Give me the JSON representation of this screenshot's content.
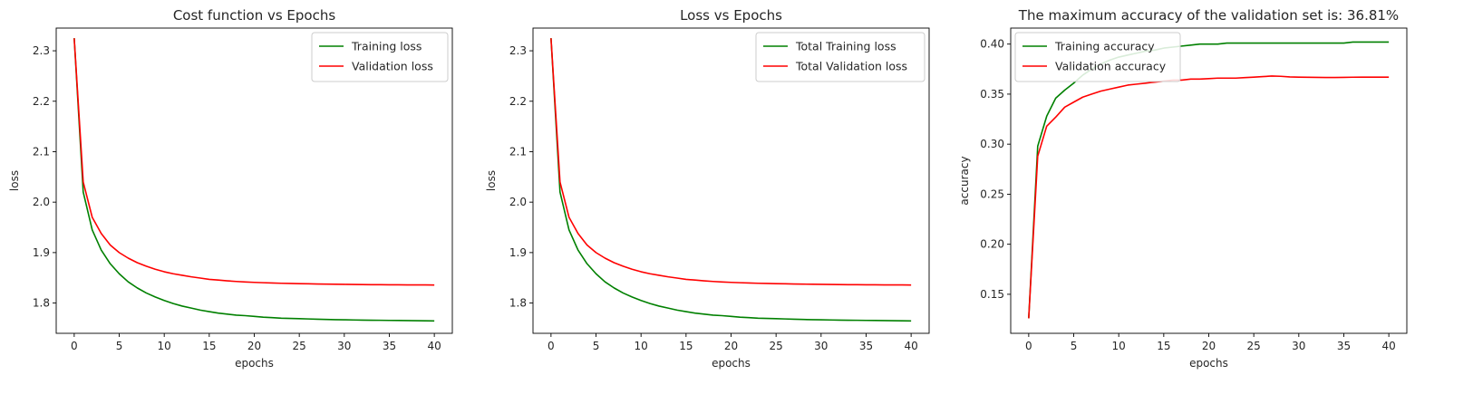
{
  "chart_data": [
    {
      "type": "line",
      "title": "Cost function vs Epochs",
      "xlabel": "epochs",
      "ylabel": "loss",
      "xlim": [
        -2,
        42
      ],
      "ylim": [
        1.74,
        2.345
      ],
      "xticks": [
        0,
        5,
        10,
        15,
        20,
        25,
        30,
        35,
        40
      ],
      "yticks": [
        1.8,
        1.9,
        2.0,
        2.1,
        2.2,
        2.3
      ],
      "ytick_labels": [
        "1.8",
        "1.9",
        "2.0",
        "2.1",
        "2.2",
        "2.3"
      ],
      "grid": false,
      "legend": "top-right",
      "x": [
        0,
        1,
        2,
        3,
        4,
        5,
        6,
        7,
        8,
        9,
        10,
        11,
        12,
        13,
        14,
        15,
        16,
        17,
        18,
        19,
        20,
        21,
        22,
        23,
        24,
        25,
        26,
        27,
        28,
        29,
        30,
        31,
        32,
        33,
        34,
        35,
        36,
        37,
        38,
        39,
        40
      ],
      "series": [
        {
          "name": "Training loss",
          "color": "#008000",
          "values": [
            2.325,
            2.02,
            1.945,
            1.905,
            1.878,
            1.858,
            1.842,
            1.83,
            1.82,
            1.812,
            1.805,
            1.799,
            1.794,
            1.79,
            1.786,
            1.783,
            1.78,
            1.778,
            1.776,
            1.775,
            1.7735,
            1.772,
            1.771,
            1.77,
            1.7695,
            1.769,
            1.7685,
            1.768,
            1.7675,
            1.767,
            1.7668,
            1.7665,
            1.7662,
            1.766,
            1.7658,
            1.7656,
            1.7654,
            1.7652,
            1.765,
            1.7648,
            1.7645
          ]
        },
        {
          "name": "Validation loss",
          "color": "#ff0000",
          "values": [
            2.325,
            2.04,
            1.97,
            1.938,
            1.915,
            1.9,
            1.889,
            1.88,
            1.873,
            1.867,
            1.862,
            1.858,
            1.855,
            1.852,
            1.8495,
            1.847,
            1.8455,
            1.844,
            1.8428,
            1.8418,
            1.841,
            1.8403,
            1.8397,
            1.8392,
            1.8388,
            1.8384,
            1.8381,
            1.8378,
            1.8375,
            1.8372,
            1.837,
            1.8368,
            1.8366,
            1.8364,
            1.8363,
            1.8362,
            1.8361,
            1.836,
            1.836,
            1.8359,
            1.8358
          ]
        }
      ]
    },
    {
      "type": "line",
      "title": "Loss vs Epochs",
      "xlabel": "epochs",
      "ylabel": "loss",
      "xlim": [
        -2,
        42
      ],
      "ylim": [
        1.74,
        2.345
      ],
      "xticks": [
        0,
        5,
        10,
        15,
        20,
        25,
        30,
        35,
        40
      ],
      "yticks": [
        1.8,
        1.9,
        2.0,
        2.1,
        2.2,
        2.3
      ],
      "ytick_labels": [
        "1.8",
        "1.9",
        "2.0",
        "2.1",
        "2.2",
        "2.3"
      ],
      "grid": false,
      "legend": "top-right",
      "x": [
        0,
        1,
        2,
        3,
        4,
        5,
        6,
        7,
        8,
        9,
        10,
        11,
        12,
        13,
        14,
        15,
        16,
        17,
        18,
        19,
        20,
        21,
        22,
        23,
        24,
        25,
        26,
        27,
        28,
        29,
        30,
        31,
        32,
        33,
        34,
        35,
        36,
        37,
        38,
        39,
        40
      ],
      "series": [
        {
          "name": "Total Training loss",
          "color": "#008000",
          "values": [
            2.325,
            2.02,
            1.945,
            1.905,
            1.878,
            1.858,
            1.842,
            1.83,
            1.82,
            1.812,
            1.805,
            1.799,
            1.794,
            1.79,
            1.786,
            1.783,
            1.78,
            1.778,
            1.776,
            1.775,
            1.7735,
            1.772,
            1.771,
            1.77,
            1.7695,
            1.769,
            1.7685,
            1.768,
            1.7675,
            1.767,
            1.7668,
            1.7665,
            1.7662,
            1.766,
            1.7658,
            1.7656,
            1.7654,
            1.7652,
            1.765,
            1.7648,
            1.7645
          ]
        },
        {
          "name": "Total Validation loss",
          "color": "#ff0000",
          "values": [
            2.325,
            2.04,
            1.97,
            1.938,
            1.915,
            1.9,
            1.889,
            1.88,
            1.873,
            1.867,
            1.862,
            1.858,
            1.855,
            1.852,
            1.8495,
            1.847,
            1.8455,
            1.844,
            1.8428,
            1.8418,
            1.841,
            1.8403,
            1.8397,
            1.8392,
            1.8388,
            1.8384,
            1.8381,
            1.8378,
            1.8375,
            1.8372,
            1.837,
            1.8368,
            1.8366,
            1.8364,
            1.8363,
            1.8362,
            1.8361,
            1.836,
            1.836,
            1.8359,
            1.8358
          ]
        }
      ]
    },
    {
      "type": "line",
      "title": "The maximum accuracy of the validation set is: 36.81%",
      "xlabel": "epochs",
      "ylabel": "accuracy",
      "xlim": [
        -2,
        42
      ],
      "ylim": [
        0.111,
        0.416
      ],
      "xticks": [
        0,
        5,
        10,
        15,
        20,
        25,
        30,
        35,
        40
      ],
      "yticks": [
        0.15,
        0.2,
        0.25,
        0.3,
        0.35,
        0.4
      ],
      "ytick_labels": [
        "0.15",
        "0.20",
        "0.25",
        "0.30",
        "0.35",
        "0.40"
      ],
      "grid": false,
      "legend": "top-left",
      "x": [
        0,
        1,
        2,
        3,
        4,
        5,
        6,
        7,
        8,
        9,
        10,
        11,
        12,
        13,
        14,
        15,
        16,
        17,
        18,
        19,
        20,
        21,
        22,
        23,
        24,
        25,
        26,
        27,
        28,
        29,
        30,
        31,
        32,
        33,
        34,
        35,
        36,
        37,
        38,
        39,
        40
      ],
      "series": [
        {
          "name": "Training accuracy",
          "color": "#008000",
          "values": [
            0.126,
            0.298,
            0.328,
            0.346,
            0.354,
            0.361,
            0.369,
            0.375,
            0.38,
            0.384,
            0.387,
            0.389,
            0.391,
            0.393,
            0.394,
            0.396,
            0.397,
            0.398,
            0.399,
            0.4,
            0.4,
            0.4,
            0.401,
            0.401,
            0.401,
            0.401,
            0.401,
            0.401,
            0.401,
            0.401,
            0.401,
            0.401,
            0.401,
            0.401,
            0.401,
            0.401,
            0.402,
            0.402,
            0.402,
            0.402,
            0.402
          ]
        },
        {
          "name": "Validation accuracy",
          "color": "#ff0000",
          "values": [
            0.126,
            0.288,
            0.318,
            0.327,
            0.337,
            0.342,
            0.347,
            0.35,
            0.353,
            0.355,
            0.357,
            0.359,
            0.36,
            0.361,
            0.362,
            0.363,
            0.364,
            0.364,
            0.365,
            0.365,
            0.3655,
            0.366,
            0.366,
            0.366,
            0.3665,
            0.367,
            0.3675,
            0.3681,
            0.3678,
            0.3672,
            0.367,
            0.3668,
            0.3667,
            0.3666,
            0.3666,
            0.3667,
            0.3669,
            0.367,
            0.367,
            0.367,
            0.367
          ]
        }
      ]
    }
  ]
}
